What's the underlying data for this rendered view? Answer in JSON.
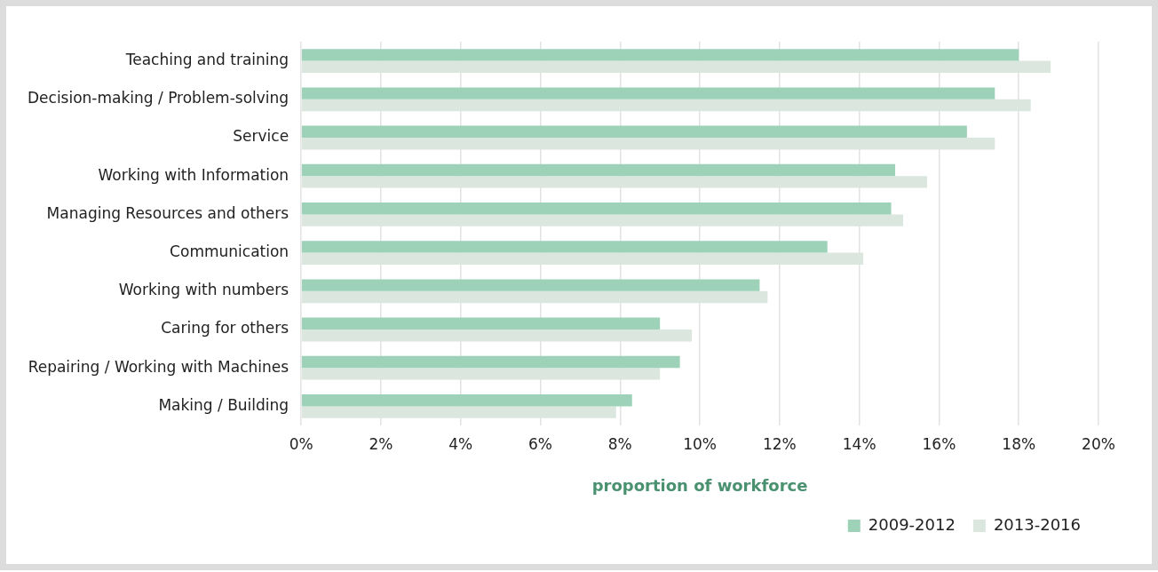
{
  "chart_data": {
    "type": "bar",
    "orientation": "horizontal",
    "xlabel": "proportion of workforce",
    "categories": [
      "Teaching and training",
      "Decision-making / Problem-solving",
      "Service",
      "Working with Information",
      "Managing Resources and others",
      "Communication",
      "Working with numbers",
      "Caring for others",
      "Repairing / Working with Machines",
      "Making / Building"
    ],
    "series": [
      {
        "name": "2009-2012",
        "color": "#9dd1b8",
        "values": [
          18.0,
          17.4,
          16.7,
          14.9,
          14.8,
          13.2,
          11.5,
          9.0,
          9.5,
          8.3
        ]
      },
      {
        "name": "2013-2016",
        "color": "#dbe6df",
        "values": [
          18.8,
          18.3,
          17.4,
          15.7,
          15.1,
          14.1,
          11.7,
          9.8,
          9.0,
          7.9
        ]
      }
    ],
    "xlim": [
      0,
      20
    ],
    "xticks": [
      {
        "value": 0,
        "label": "0%"
      },
      {
        "value": 2,
        "label": "2%"
      },
      {
        "value": 4,
        "label": "4%"
      },
      {
        "value": 6,
        "label": "6%"
      },
      {
        "value": 8,
        "label": "8%"
      },
      {
        "value": 10,
        "label": "10%"
      },
      {
        "value": 12,
        "label": "12%"
      },
      {
        "value": 14,
        "label": "14%"
      },
      {
        "value": 16,
        "label": "16%"
      },
      {
        "value": 18,
        "label": "18%"
      },
      {
        "value": 20,
        "label": "20%"
      }
    ],
    "grid": "x",
    "legend": "bottom right"
  }
}
